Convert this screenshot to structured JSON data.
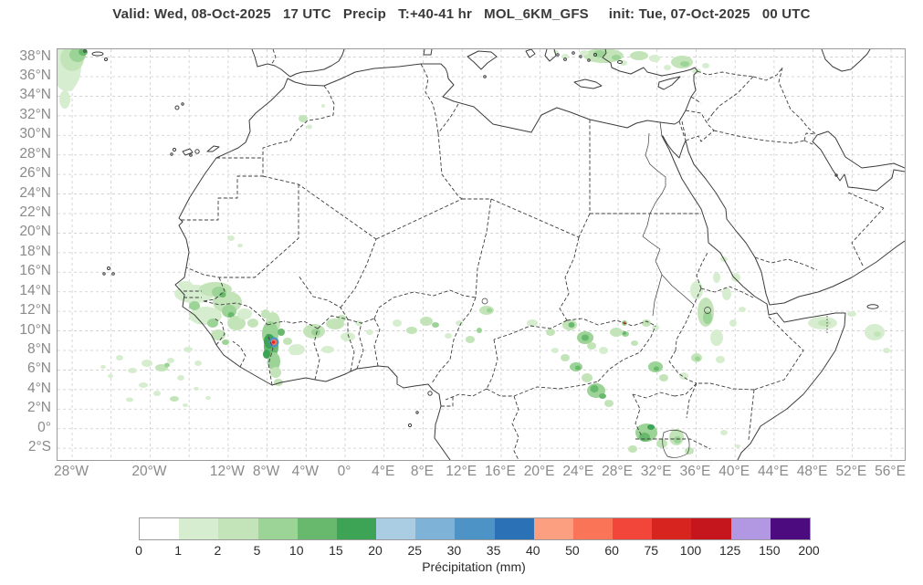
{
  "title": "Valid: Wed, 08-Oct-2025   17 UTC   Precip   T:+40-41 hr   MOL_6KM_GFS     init: Tue, 07-Oct-2025   00 UTC",
  "map": {
    "extent": {
      "lon_min": -29.5,
      "lon_max": 57.4,
      "lat_min": -3.2,
      "lat_max": 38.8
    },
    "grid": {
      "lon_step": 4,
      "lat_step": 2
    },
    "lat_ticks": [
      {
        "label": "38°N",
        "deg": 38
      },
      {
        "label": "36°N",
        "deg": 36
      },
      {
        "label": "34°N",
        "deg": 34
      },
      {
        "label": "32°N",
        "deg": 32
      },
      {
        "label": "30°N",
        "deg": 30
      },
      {
        "label": "28°N",
        "deg": 28
      },
      {
        "label": "26°N",
        "deg": 26
      },
      {
        "label": "24°N",
        "deg": 24
      },
      {
        "label": "22°N",
        "deg": 22
      },
      {
        "label": "20°N",
        "deg": 20
      },
      {
        "label": "18°N",
        "deg": 18
      },
      {
        "label": "16°N",
        "deg": 16
      },
      {
        "label": "14°N",
        "deg": 14
      },
      {
        "label": "12°N",
        "deg": 12
      },
      {
        "label": "10°N",
        "deg": 10
      },
      {
        "label": "8°N",
        "deg": 8
      },
      {
        "label": "6°N",
        "deg": 6
      },
      {
        "label": "4°N",
        "deg": 4
      },
      {
        "label": "2°N",
        "deg": 2
      },
      {
        "label": "0°",
        "deg": 0
      },
      {
        "label": "2°S",
        "deg": -2
      }
    ],
    "lon_ticks": [
      {
        "label": "28°W",
        "deg": -28
      },
      {
        "label": "20°W",
        "deg": -20
      },
      {
        "label": "12°W",
        "deg": -12
      },
      {
        "label": "8°W",
        "deg": -8
      },
      {
        "label": "4°W",
        "deg": -4
      },
      {
        "label": "0°",
        "deg": 0
      },
      {
        "label": "4°E",
        "deg": 4
      },
      {
        "label": "8°E",
        "deg": 8
      },
      {
        "label": "12°E",
        "deg": 12
      },
      {
        "label": "16°E",
        "deg": 16
      },
      {
        "label": "20°E",
        "deg": 20
      },
      {
        "label": "24°E",
        "deg": 24
      },
      {
        "label": "28°E",
        "deg": 28
      },
      {
        "label": "32°E",
        "deg": 32
      },
      {
        "label": "36°E",
        "deg": 36
      },
      {
        "label": "40°E",
        "deg": 40
      },
      {
        "label": "44°E",
        "deg": 44
      },
      {
        "label": "48°E",
        "deg": 48
      },
      {
        "label": "52°E",
        "deg": 52
      },
      {
        "label": "56°E",
        "deg": 56
      }
    ]
  },
  "colorbar": {
    "label": "Précipitation (mm)",
    "levels": [
      "0",
      "1",
      "2",
      "5",
      "10",
      "15",
      "20",
      "25",
      "30",
      "35",
      "40",
      "50",
      "60",
      "75",
      "100",
      "125",
      "150",
      "200"
    ],
    "colors": [
      "#ffffff",
      "#d6eecf",
      "#c3e4b8",
      "#9cd396",
      "#68b96d",
      "#3da355",
      "#abcde3",
      "#7fb2d7",
      "#4d93c6",
      "#2a72b5",
      "#fc9e80",
      "#fa7458",
      "#f2463a",
      "#d8241f",
      "#c5161d",
      "#b297e3",
      "#4c0c80"
    ]
  },
  "precipitation_summary": [
    "Azores (NW corner): light to moderate rain 1-15 mm",
    "Senegal / Guinea / Sierra Leone: widespread 1-10 mm patches",
    "Guinea highlands (~9N 8W): intense cell exceeding 75-100 mm (blue/red core)",
    "Ivory Coast / Ghana: scattered 1-5 mm",
    "Eastern Atlantic (4-8N): scattered light showers 1-2 mm",
    "Chad / CAR / South Sudan / Ethiopia: scattered 1-15 mm, small >60 mm spot near 11N 34E",
    "Uganda / Lake Victoria: cluster 5-20 mm",
    "Northern Somalia: light 1-5 mm",
    "Southern Turkey coast and Cyprus: light to moderate 1-10 mm"
  ]
}
